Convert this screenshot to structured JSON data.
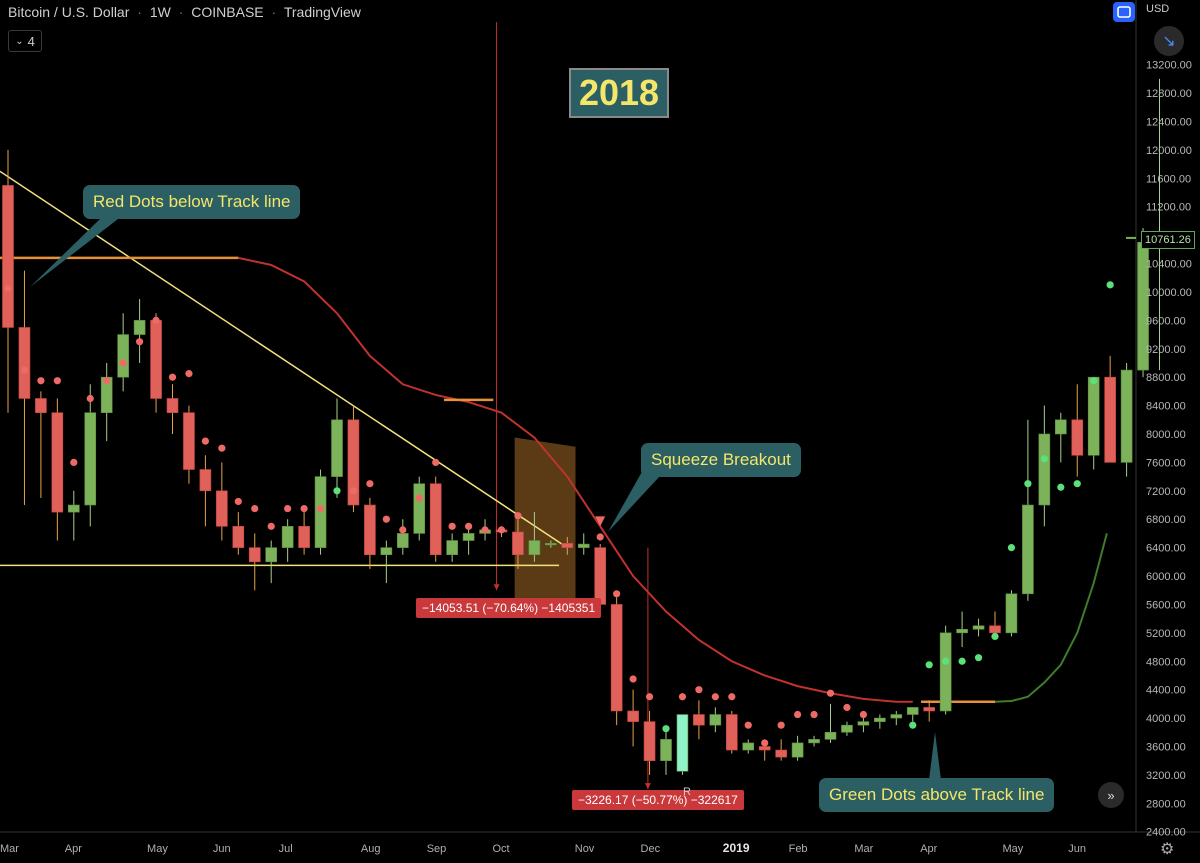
{
  "header": {
    "symbol": "Bitcoin / U.S. Dollar",
    "interval": "1W",
    "exchange": "COINBASE",
    "platform": "TradingView",
    "indicator_count": "4"
  },
  "currency": "USD",
  "last_price": "10761.26",
  "year_label": "2018",
  "annotations": {
    "red_dots": "Red Dots below Track line",
    "squeeze": "Squeeze Breakout",
    "green_dots": "Green Dots above Track line"
  },
  "measures": {
    "first": "−14053.51 (−70.64%) −1405351",
    "second": "−3226.17 (−50.77%) −322617"
  },
  "marker_r": "R",
  "icons": {
    "fullscreen": "fullscreen-icon",
    "collapse": "collapse-arrows-icon",
    "next": "double-chevron-right-icon",
    "settings": "gear-icon",
    "indicators": "chevron-down-icon"
  },
  "colors": {
    "bull": "#7cb35a",
    "bear": "#e0605a",
    "dot_red": "#ee6a66",
    "dot_green": "#5be07a",
    "track_red": "#c0322d",
    "track_green": "#3f7d2b",
    "trendline": "#f0e27a",
    "orange": "#e8903a",
    "shade": "#6b4519"
  },
  "chart_data": {
    "type": "candlestick",
    "title": "Bitcoin / U.S. Dollar",
    "interval": "1W",
    "y_ticks": [
      2400,
      2800,
      3200,
      3600,
      4000,
      4400,
      4800,
      5200,
      5600,
      6000,
      6400,
      6800,
      7200,
      7600,
      8000,
      8400,
      8800,
      9200,
      9600,
      10000,
      10400,
      10800,
      11200,
      11600,
      12000,
      12400,
      12800,
      13200
    ],
    "ylim": [
      2300,
      13800
    ],
    "x_tick_labels": [
      {
        "label": "Mar",
        "week": -0.5
      },
      {
        "label": "Apr",
        "week": 4
      },
      {
        "label": "May",
        "week": 9
      },
      {
        "label": "Jun",
        "week": 13
      },
      {
        "label": "Jul",
        "week": 17
      },
      {
        "label": "Aug",
        "week": 22
      },
      {
        "label": "Sep",
        "week": 26
      },
      {
        "label": "Oct",
        "week": 30
      },
      {
        "label": "Nov",
        "week": 35
      },
      {
        "label": "Dec",
        "week": 39
      },
      {
        "label": "2019",
        "week": 44
      },
      {
        "label": "Feb",
        "week": 48
      },
      {
        "label": "Mar",
        "week": 52
      },
      {
        "label": "Apr",
        "week": 56
      },
      {
        "label": "May",
        "week": 61
      },
      {
        "label": "Jun",
        "week": 65
      }
    ],
    "candles": [
      [
        11500,
        12000,
        8300,
        9500
      ],
      [
        9500,
        10300,
        7000,
        8500
      ],
      [
        8500,
        8600,
        7100,
        8300
      ],
      [
        8300,
        8500,
        6500,
        6900
      ],
      [
        6900,
        7200,
        6500,
        7000
      ],
      [
        7000,
        8700,
        6700,
        8300
      ],
      [
        8300,
        9000,
        7900,
        8800
      ],
      [
        8800,
        9700,
        8600,
        9400
      ],
      [
        9400,
        9900,
        9000,
        9600
      ],
      [
        9600,
        9700,
        8300,
        8500
      ],
      [
        8500,
        8700,
        8000,
        8300
      ],
      [
        8300,
        8400,
        7300,
        7500
      ],
      [
        7500,
        7700,
        6700,
        7200
      ],
      [
        7200,
        7600,
        6500,
        6700
      ],
      [
        6700,
        6900,
        6300,
        6400
      ],
      [
        6400,
        6600,
        5800,
        6200
      ],
      [
        6200,
        6500,
        5900,
        6400
      ],
      [
        6400,
        6800,
        6200,
        6700
      ],
      [
        6700,
        6900,
        6300,
        6400
      ],
      [
        6400,
        7500,
        6300,
        7400
      ],
      [
        7400,
        8500,
        7100,
        8200
      ],
      [
        8200,
        8400,
        6900,
        7000
      ],
      [
        7000,
        7100,
        6100,
        6300
      ],
      [
        6300,
        6500,
        5900,
        6400
      ],
      [
        6400,
        6800,
        6300,
        6600
      ],
      [
        6600,
        7400,
        6500,
        7300
      ],
      [
        7300,
        7400,
        6200,
        6300
      ],
      [
        6300,
        6600,
        6200,
        6500
      ],
      [
        6500,
        6700,
        6300,
        6600
      ],
      [
        6600,
        6800,
        6500,
        6650
      ],
      [
        6650,
        6700,
        6550,
        6620
      ],
      [
        6620,
        6800,
        6100,
        6300
      ],
      [
        6300,
        6900,
        6200,
        6500
      ],
      [
        6450,
        6500,
        6400,
        6460
      ],
      [
        6460,
        6550,
        6300,
        6400
      ],
      [
        6400,
        6600,
        6300,
        6450
      ],
      [
        6400,
        6450,
        5500,
        5600
      ],
      [
        5600,
        5700,
        3900,
        4100
      ],
      [
        4100,
        4400,
        3600,
        3950
      ],
      [
        3950,
        4100,
        3200,
        3400
      ],
      [
        3400,
        3800,
        3200,
        3700
      ],
      [
        3250,
        4050,
        3200,
        4050
      ],
      [
        4050,
        4250,
        3700,
        3900
      ],
      [
        3900,
        4150,
        3800,
        4050
      ],
      [
        4050,
        4100,
        3500,
        3550
      ],
      [
        3550,
        3700,
        3500,
        3650
      ],
      [
        3600,
        3700,
        3400,
        3550
      ],
      [
        3550,
        3700,
        3400,
        3450
      ],
      [
        3450,
        3750,
        3400,
        3650
      ],
      [
        3650,
        3750,
        3600,
        3700
      ],
      [
        3700,
        4200,
        3650,
        3800
      ],
      [
        3800,
        3950,
        3750,
        3900
      ],
      [
        3900,
        4000,
        3800,
        3950
      ],
      [
        3950,
        4050,
        3850,
        4000
      ],
      [
        4000,
        4100,
        3900,
        4050
      ],
      [
        4050,
        4150,
        3950,
        4150
      ],
      [
        4150,
        4250,
        3950,
        4100
      ],
      [
        4100,
        5300,
        4050,
        5200
      ],
      [
        5200,
        5500,
        5000,
        5250
      ],
      [
        5250,
        5400,
        5150,
        5300
      ],
      [
        5300,
        5500,
        5150,
        5200
      ],
      [
        5200,
        5800,
        5150,
        5750
      ],
      [
        5750,
        8200,
        5650,
        7000
      ],
      [
        7000,
        8400,
        6700,
        8000
      ],
      [
        8000,
        8300,
        7600,
        8200
      ],
      [
        8200,
        8700,
        7400,
        7700
      ],
      [
        7700,
        8800,
        7500,
        8800
      ],
      [
        8800,
        9100,
        7600,
        7600
      ],
      [
        7600,
        9000,
        7400,
        8900
      ],
      [
        8900,
        10900,
        8800,
        10700
      ],
      [
        10700,
        13000,
        8900,
        10761
      ]
    ],
    "dots": [
      {
        "week": 0,
        "value": 10050,
        "color": "red"
      },
      {
        "week": 1,
        "value": 8900,
        "color": "red"
      },
      {
        "week": 2,
        "value": 8750,
        "color": "red"
      },
      {
        "week": 3,
        "value": 8750,
        "color": "red"
      },
      {
        "week": 4,
        "value": 7600,
        "color": "red"
      },
      {
        "week": 5,
        "value": 8500,
        "color": "red"
      },
      {
        "week": 6,
        "value": 8750,
        "color": "red"
      },
      {
        "week": 7,
        "value": 9000,
        "color": "red"
      },
      {
        "week": 8,
        "value": 9300,
        "color": "red"
      },
      {
        "week": 9,
        "value": 9600,
        "color": "red"
      },
      {
        "week": 10,
        "value": 8800,
        "color": "red"
      },
      {
        "week": 11,
        "value": 8850,
        "color": "red"
      },
      {
        "week": 12,
        "value": 7900,
        "color": "red"
      },
      {
        "week": 13,
        "value": 7800,
        "color": "red"
      },
      {
        "week": 14,
        "value": 7050,
        "color": "red"
      },
      {
        "week": 15,
        "value": 6950,
        "color": "red"
      },
      {
        "week": 16,
        "value": 6700,
        "color": "red"
      },
      {
        "week": 17,
        "value": 6950,
        "color": "red"
      },
      {
        "week": 18,
        "value": 6950,
        "color": "red"
      },
      {
        "week": 19,
        "value": 6950,
        "color": "red"
      },
      {
        "week": 20,
        "value": 7200,
        "color": "green"
      },
      {
        "week": 21,
        "value": 7200,
        "color": "red"
      },
      {
        "week": 22,
        "value": 7300,
        "color": "red"
      },
      {
        "week": 23,
        "value": 6800,
        "color": "red"
      },
      {
        "week": 24,
        "value": 6650,
        "color": "red"
      },
      {
        "week": 25,
        "value": 7100,
        "color": "red"
      },
      {
        "week": 26,
        "value": 7600,
        "color": "red"
      },
      {
        "week": 27,
        "value": 6700,
        "color": "red"
      },
      {
        "week": 28,
        "value": 6700,
        "color": "red"
      },
      {
        "week": 29,
        "value": 6650,
        "color": "red"
      },
      {
        "week": 30,
        "value": 6650,
        "color": "red"
      },
      {
        "week": 31,
        "value": 6850,
        "color": "red"
      },
      {
        "week": 36,
        "value": 6550,
        "color": "red"
      },
      {
        "week": 37,
        "value": 5750,
        "color": "red"
      },
      {
        "week": 38,
        "value": 4550,
        "color": "red"
      },
      {
        "week": 39,
        "value": 4300,
        "color": "red"
      },
      {
        "week": 40,
        "value": 3850,
        "color": "green"
      },
      {
        "week": 41,
        "value": 4300,
        "color": "red"
      },
      {
        "week": 42,
        "value": 4400,
        "color": "red"
      },
      {
        "week": 43,
        "value": 4300,
        "color": "red"
      },
      {
        "week": 44,
        "value": 4300,
        "color": "red"
      },
      {
        "week": 45,
        "value": 3900,
        "color": "red"
      },
      {
        "week": 46,
        "value": 3650,
        "color": "red"
      },
      {
        "week": 47,
        "value": 3900,
        "color": "red"
      },
      {
        "week": 48,
        "value": 4050,
        "color": "red"
      },
      {
        "week": 49,
        "value": 4050,
        "color": "red"
      },
      {
        "week": 50,
        "value": 4350,
        "color": "red"
      },
      {
        "week": 51,
        "value": 4150,
        "color": "red"
      },
      {
        "week": 52,
        "value": 4050,
        "color": "red"
      },
      {
        "week": 55,
        "value": 3900,
        "color": "green"
      },
      {
        "week": 56,
        "value": 4750,
        "color": "green"
      },
      {
        "week": 57,
        "value": 4800,
        "color": "green"
      },
      {
        "week": 58,
        "value": 4800,
        "color": "green"
      },
      {
        "week": 59,
        "value": 4850,
        "color": "green"
      },
      {
        "week": 60,
        "value": 5150,
        "color": "green"
      },
      {
        "week": 61,
        "value": 6400,
        "color": "green"
      },
      {
        "week": 62,
        "value": 7300,
        "color": "green"
      },
      {
        "week": 63,
        "value": 7650,
        "color": "green"
      },
      {
        "week": 64,
        "value": 7250,
        "color": "green"
      },
      {
        "week": 65,
        "value": 7300,
        "color": "green"
      },
      {
        "week": 66,
        "value": 8750,
        "color": "green"
      },
      {
        "week": 67,
        "value": 10100,
        "color": "green"
      }
    ],
    "track_line": [
      [
        14,
        10480
      ],
      [
        16,
        10380
      ],
      [
        18,
        10150
      ],
      [
        20,
        9700
      ],
      [
        22,
        9100
      ],
      [
        24,
        8700
      ],
      [
        26,
        8550
      ],
      [
        28,
        8450
      ],
      [
        30,
        8300
      ],
      [
        32,
        7950
      ],
      [
        34,
        7400
      ],
      [
        36,
        6700
      ],
      [
        38,
        6000
      ],
      [
        40,
        5500
      ],
      [
        42,
        5100
      ],
      [
        44,
        4800
      ],
      [
        46,
        4600
      ],
      [
        48,
        4450
      ],
      [
        50,
        4350
      ],
      [
        52,
        4270
      ],
      [
        54,
        4230
      ],
      [
        55,
        4230
      ]
    ],
    "track_line_up": [
      [
        60,
        4230
      ],
      [
        61,
        4240
      ],
      [
        62,
        4300
      ],
      [
        63,
        4500
      ],
      [
        64,
        4750
      ],
      [
        65,
        5200
      ],
      [
        66,
        5900
      ],
      [
        66.8,
        6600
      ]
    ],
    "track_flat_orange": [
      {
        "from": -0.5,
        "to": 14,
        "value": 10480
      },
      {
        "from": 26.5,
        "to": 29.5,
        "value": 8480
      },
      {
        "from": 55.5,
        "to": 60,
        "value": 4230
      }
    ],
    "trendline_descending": [
      [
        -0.5,
        11700
      ],
      [
        34,
        6400
      ]
    ],
    "trendline_support": [
      [
        -0.5,
        6150
      ],
      [
        33.5,
        6150
      ]
    ],
    "shade_zone": {
      "from": 30.8,
      "to": 34.5,
      "top_start": 7950,
      "top_end": 7820,
      "bottom": 5600
    },
    "vertical_markers": [
      {
        "week": 29.7,
        "top": 13800,
        "bottom": 5800
      },
      {
        "week": 38.9,
        "top": 6400,
        "bottom": 3000
      }
    ],
    "squeeze_marker": {
      "week": 36,
      "value": 6700
    }
  }
}
